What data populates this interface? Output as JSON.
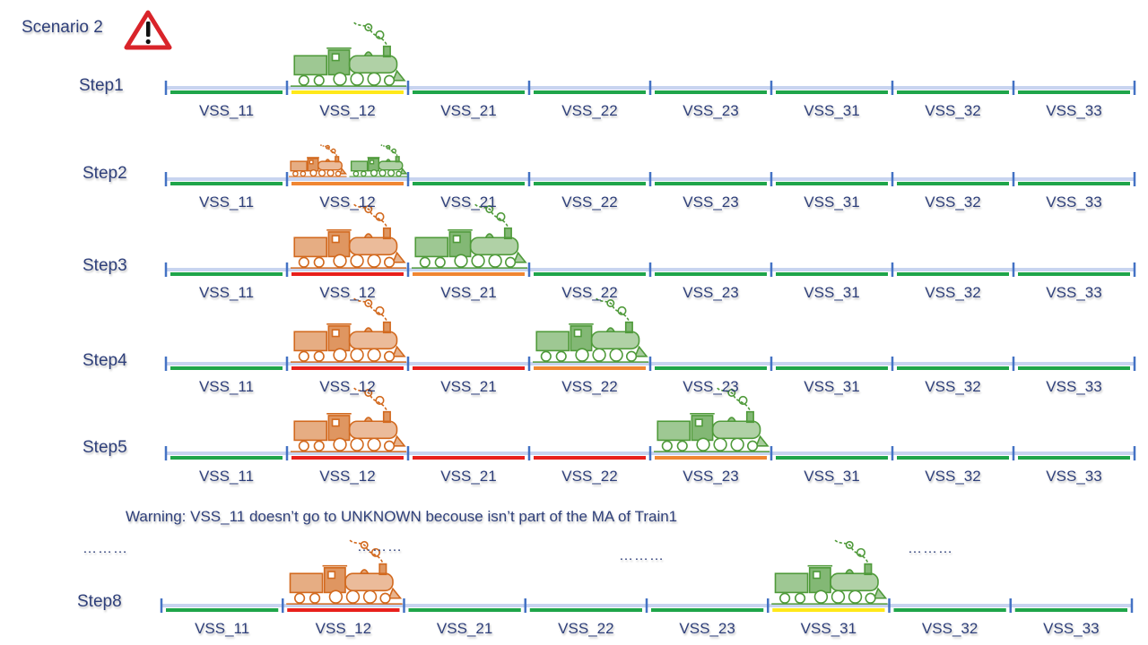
{
  "title": "Scenario 2",
  "warning_note": "Warning: VSS_11 doesn’t go to UNKNOWN becouse isn’t part of the MA of Train1",
  "ellipsis": "………",
  "colors": {
    "free": "#1fa54a",
    "ambiguous": "#ffe81a",
    "unknown": "#f08632",
    "occupied": "#e8201c",
    "track": "#c8d4f0",
    "tick": "#4472c4",
    "train1": "#d2691e",
    "train2": "#4f9a3a",
    "warning_icon": "#d9242a"
  },
  "sections": [
    "VSS_11",
    "VSS_12",
    "VSS_21",
    "VSS_22",
    "VSS_23",
    "VSS_31",
    "VSS_32",
    "VSS_33"
  ],
  "steps": [
    {
      "label": "Step1",
      "states": [
        "free",
        "ambiguous",
        "free",
        "free",
        "free",
        "free",
        "free",
        "free"
      ],
      "trains": [
        {
          "name": "train2",
          "section": 1
        }
      ]
    },
    {
      "label": "Step2",
      "states": [
        "free",
        "unknown",
        "free",
        "free",
        "free",
        "free",
        "free",
        "free"
      ],
      "trains": [
        {
          "name": "train1",
          "section": 1,
          "half": "left"
        },
        {
          "name": "train2",
          "section": 1,
          "half": "right"
        }
      ]
    },
    {
      "label": "Step3",
      "states": [
        "free",
        "occupied",
        "unknown",
        "free",
        "free",
        "free",
        "free",
        "free"
      ],
      "trains": [
        {
          "name": "train1",
          "section": 1
        },
        {
          "name": "train2",
          "section": 2
        }
      ]
    },
    {
      "label": "Step4",
      "states": [
        "free",
        "occupied",
        "occupied",
        "unknown",
        "free",
        "free",
        "free",
        "free"
      ],
      "trains": [
        {
          "name": "train1",
          "section": 1
        },
        {
          "name": "train2",
          "section": 3
        }
      ]
    },
    {
      "label": "Step5",
      "states": [
        "free",
        "occupied",
        "occupied",
        "occupied",
        "unknown",
        "free",
        "free",
        "free"
      ],
      "trains": [
        {
          "name": "train1",
          "section": 1
        },
        {
          "name": "train2",
          "section": 4
        }
      ]
    },
    {
      "label": "Step8",
      "states": [
        "free",
        "occupied",
        "free",
        "free",
        "free",
        "ambiguous",
        "free",
        "free"
      ],
      "trains": [
        {
          "name": "train1",
          "section": 1
        },
        {
          "name": "train2",
          "section": 5
        }
      ]
    }
  ]
}
